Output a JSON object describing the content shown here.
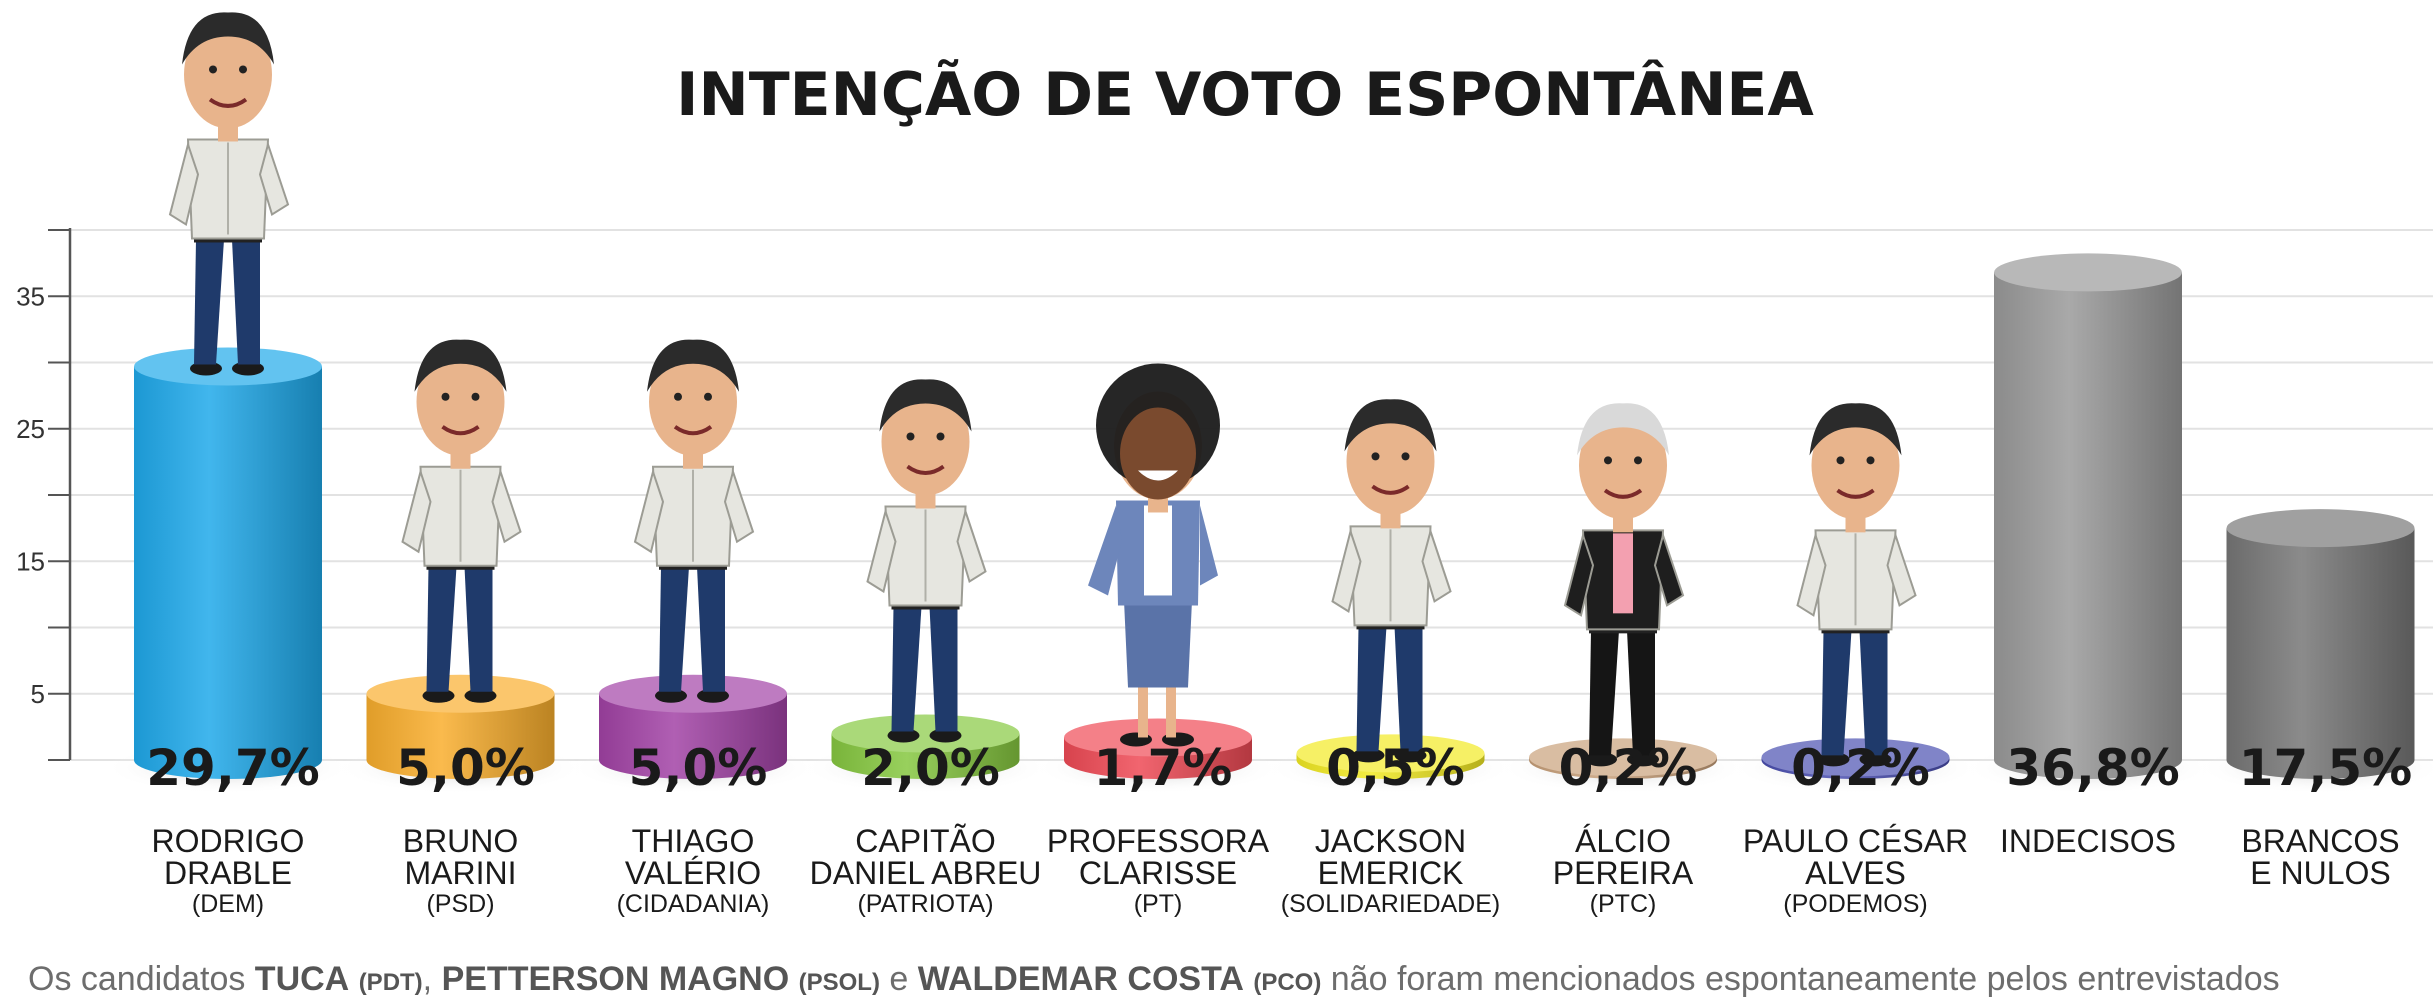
{
  "chart_data": {
    "type": "bar",
    "title": "INTENÇÃO DE VOTO ESPONTÂNEA",
    "ylim": [
      0,
      40
    ],
    "yticks": [
      5,
      15,
      25,
      35
    ],
    "grid": true,
    "bars": [
      {
        "name_lines": [
          "RODRIGO",
          "DRABLE"
        ],
        "party": "(DEM)",
        "value": 29.7,
        "label": "29,7%",
        "color": "#1fa9ea",
        "kind": "person"
      },
      {
        "name_lines": [
          "BRUNO",
          "MARINI"
        ],
        "party": "(PSD)",
        "value": 5.0,
        "label": "5,0%",
        "color": "#f9ae2d",
        "kind": "person"
      },
      {
        "name_lines": [
          "THIAGO",
          "VALÉRIO"
        ],
        "party": "(CIDADANIA)",
        "value": 5.0,
        "label": "5,0%",
        "color": "#a243a6",
        "kind": "person"
      },
      {
        "name_lines": [
          "CAPITÃO",
          "DANIEL ABREU"
        ],
        "party": "(PATRIOTA)",
        "value": 2.0,
        "label": "2,0%",
        "color": "#86c840",
        "kind": "person"
      },
      {
        "name_lines": [
          "PROFESSORA",
          "CLARISSE"
        ],
        "party": "(PT)",
        "value": 1.7,
        "label": "1,7%",
        "color": "#ef4a55",
        "kind": "person"
      },
      {
        "name_lines": [
          "JACKSON",
          "EMERICK"
        ],
        "party": "(SOLIDARIEDADE)",
        "value": 0.5,
        "label": "0,5%",
        "color": "#f2ea23",
        "kind": "person"
      },
      {
        "name_lines": [
          "ÁLCIO",
          "PEREIRA"
        ],
        "party": "(PTC)",
        "value": 0.2,
        "label": "0,2%",
        "color": "#c8a07a",
        "kind": "person"
      },
      {
        "name_lines": [
          "PAULO CÉSAR",
          "ALVES"
        ],
        "party": "(PODEMOS)",
        "value": 0.2,
        "label": "0,2%",
        "color": "#4a4fb0",
        "kind": "person"
      },
      {
        "name_lines": [
          "INDECISOS"
        ],
        "party": "",
        "value": 36.8,
        "label": "36,8%",
        "color": "#9a9a9a",
        "kind": "plain"
      },
      {
        "name_lines": [
          "BRANCOS",
          "E NULOS"
        ],
        "party": "",
        "value": 17.5,
        "label": "17,5%",
        "color": "#777777",
        "kind": "plain"
      }
    ]
  },
  "footnote": {
    "prefix": "Os candidatos ",
    "items": [
      {
        "name": "TUCA",
        "party": "(PDT)"
      },
      {
        "name": "PETTERSON MAGNO",
        "party": "(PSOL)"
      },
      {
        "name": "WALDEMAR COSTA",
        "party": "(PCO)"
      }
    ],
    "separator": ", ",
    "conjunction": " e ",
    "suffix": " não foram mencionados espontaneamente pelos entrevistados"
  },
  "colors": {
    "suit_shirt": "#e6e6e0",
    "trousers": "#1f3a6b",
    "skin": "#e8b48c",
    "hair": "#2b2b2b"
  }
}
